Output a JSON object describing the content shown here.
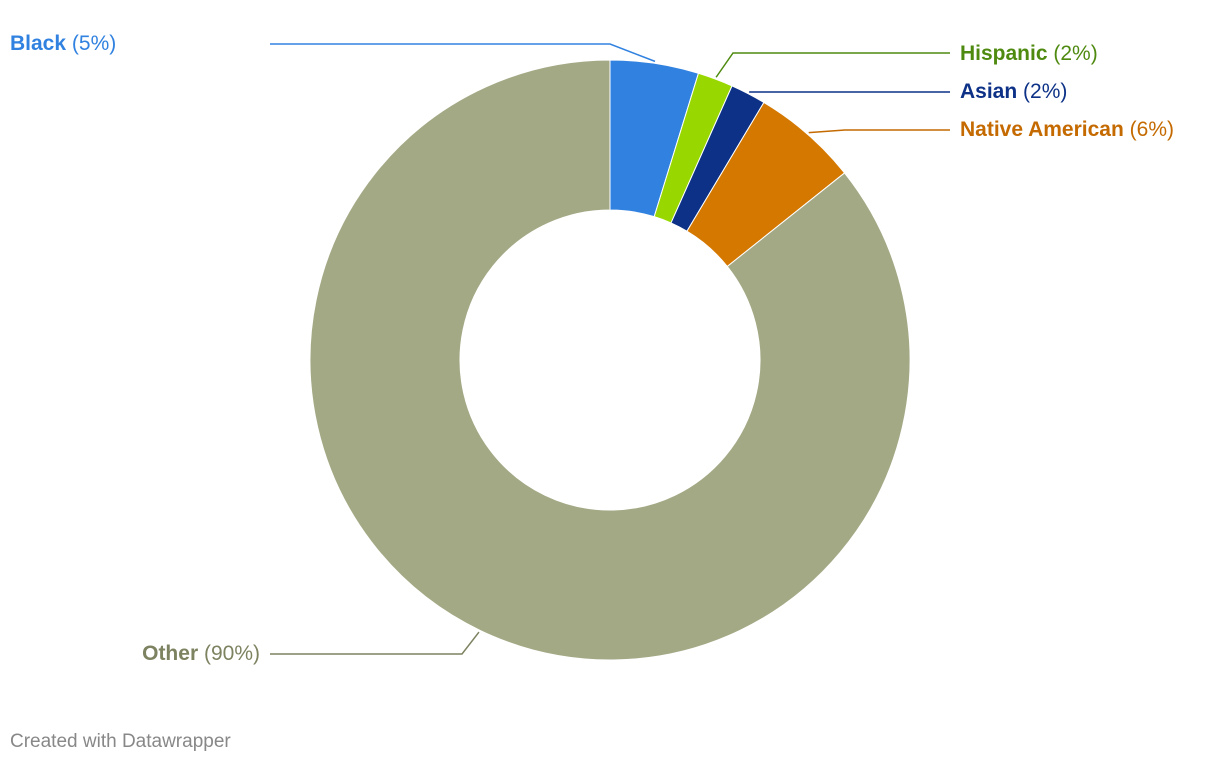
{
  "chart_data": {
    "type": "donut",
    "categories": [
      "Black",
      "Hispanic",
      "Asian",
      "Native American",
      "Other"
    ],
    "values": [
      5,
      2,
      2,
      6,
      90
    ],
    "value_labels": [
      "(5%)",
      "(2%)",
      "(2%)",
      "(6%)",
      "(90%)"
    ],
    "colors": [
      "#3182e0",
      "#98d800",
      "#0c3186",
      "#d47800",
      "#a3a985"
    ],
    "label_colors": [
      "#3182e0",
      "#4f8a10",
      "#0c3186",
      "#c46a00",
      "#7d8260"
    ],
    "credit": "Created with Datawrapper"
  }
}
